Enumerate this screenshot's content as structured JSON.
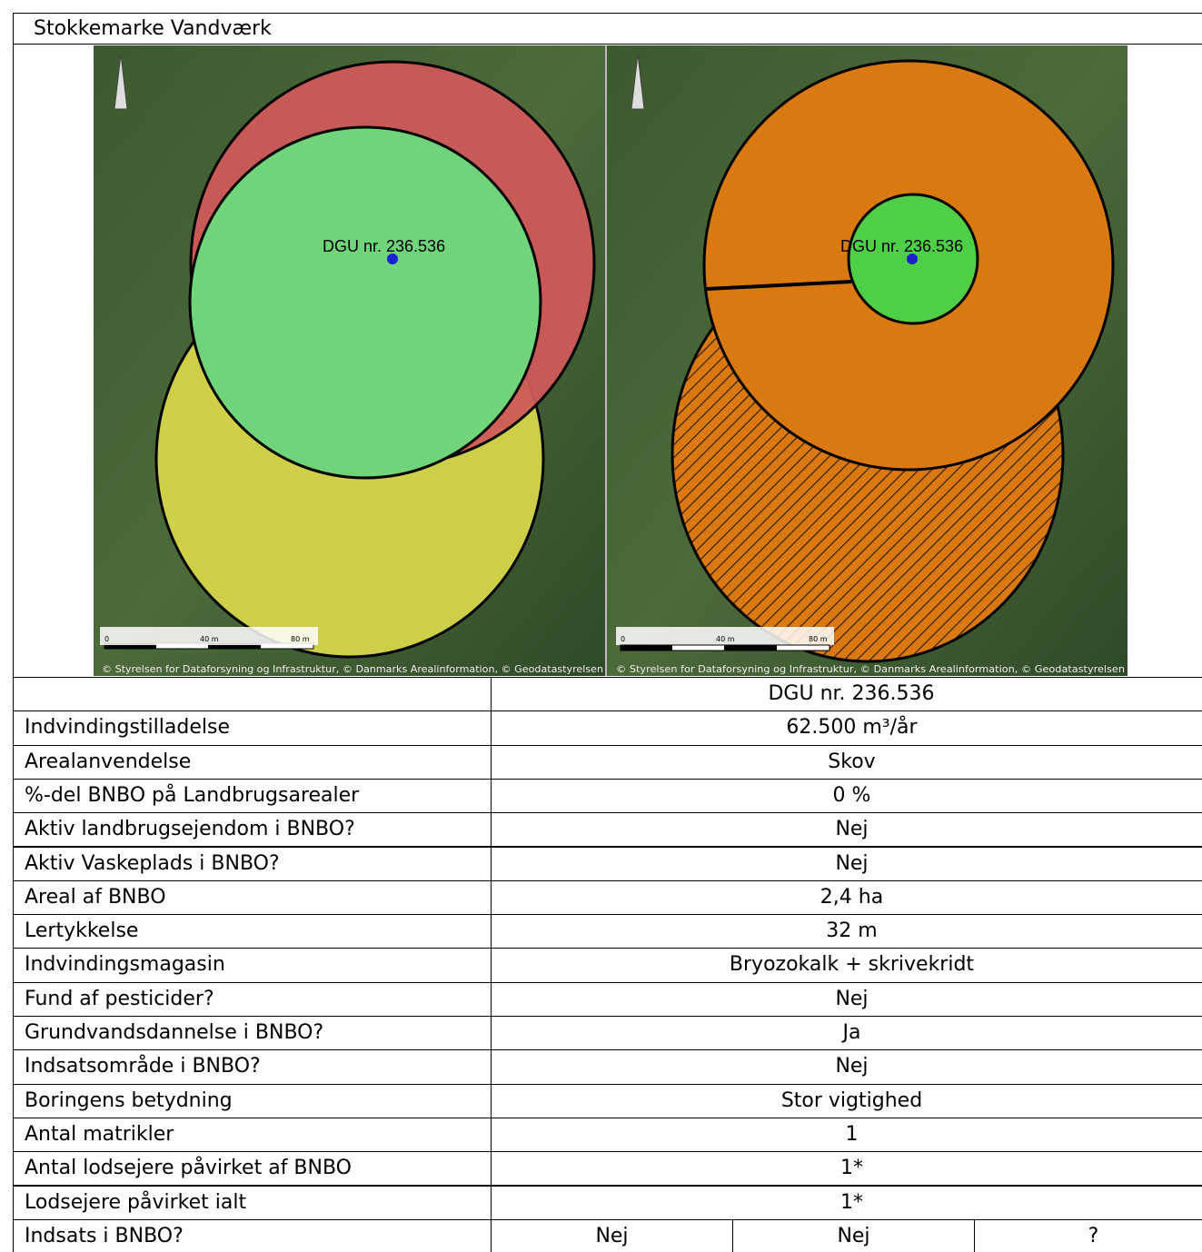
{
  "title": "Stokkemarke Vandværk",
  "maps": [
    {
      "label": "DGU nr. 236.536",
      "scale": [
        "0",
        "40 m",
        "80 m"
      ],
      "credit": "© Styrelsen for Dataforsyning og Infrastruktur, © Danmarks Arealinformation, © Geodatastyrelsen"
    },
    {
      "label": "DGU nr. 236.536",
      "scale": [
        "0",
        "40 m",
        "80 m"
      ],
      "credit": "© Styrelsen for Dataforsyning og Infrastruktur, © Danmarks Arealinformation, © Geodatastyrelsen"
    }
  ],
  "table": {
    "column": "DGU nr. 236.536",
    "rows": [
      [
        "Indvindingstilladelse",
        "62.500 m³/år"
      ],
      [
        "Arealanvendelse",
        "Skov"
      ],
      [
        "%-del BNBO på Landbrugsarealer",
        "0 %"
      ],
      [
        "Aktiv landbrugsejendom i BNBO?",
        "Nej"
      ],
      [
        "Aktiv Vaskeplads i BNBO?",
        "Nej"
      ],
      [
        "Areal af BNBO",
        "2,4 ha"
      ],
      [
        "Lertykkelse",
        "32 m"
      ],
      [
        "Indvindingsmagasin",
        "Bryozokalk + skrivekridt"
      ],
      [
        "Fund af pesticider?",
        "Nej"
      ],
      [
        "Grundvandsdannelse i BNBO?",
        "Ja"
      ],
      [
        "Indsatsområde i BNBO?",
        "Nej"
      ],
      [
        "Boringens betydning",
        "Stor vigtighed"
      ],
      [
        "Antal matrikler",
        "1"
      ],
      [
        "Antal lodsejere påvirket af BNBO",
        "1*"
      ],
      [
        "Lodsejere påvirket ialt",
        "1*"
      ],
      [
        "Indsats i BNBO?",
        "Nej",
        "Nej",
        "?"
      ]
    ]
  }
}
